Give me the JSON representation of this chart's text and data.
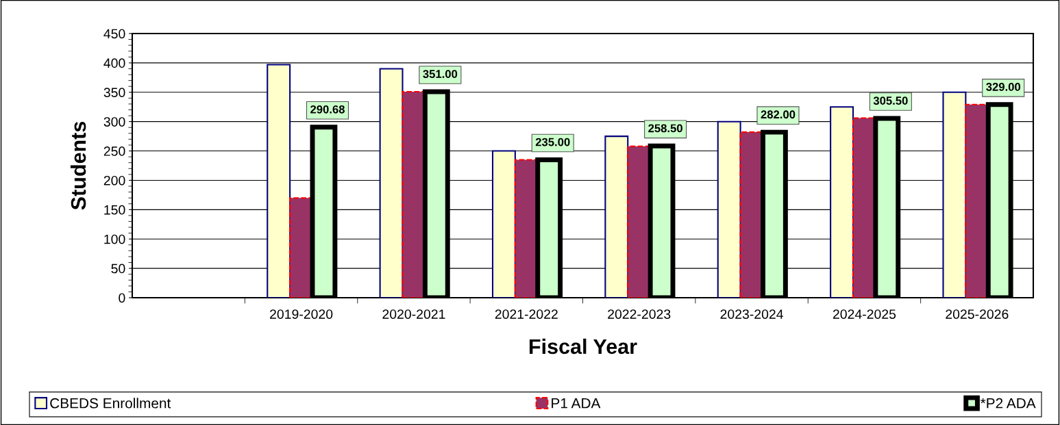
{
  "chart_data": {
    "type": "bar",
    "xlabel": "Fiscal Year",
    "ylabel": "Students",
    "categories": [
      null,
      "2019-2020",
      "2020-2021",
      "2021-2022",
      "2022-2023",
      "2023-2024",
      "2024-2025",
      "2025-2026"
    ],
    "series": [
      {
        "name": "CBEDS Enrollment",
        "color": "#ffffcc",
        "values": [
          null,
          397,
          390,
          250,
          275,
          300,
          325,
          350
        ]
      },
      {
        "name": "P1 ADA",
        "color": "#993366",
        "values": [
          null,
          170,
          351,
          235,
          258,
          282,
          306,
          329
        ]
      },
      {
        "name": "*P2 ADA",
        "color": "#ccffcc",
        "values": [
          null,
          290.68,
          351,
          235,
          258.5,
          282,
          305.5,
          329
        ],
        "value_labels": [
          null,
          "290.68",
          "351.00",
          "235.00",
          "258.50",
          "282.00",
          "305.50",
          "329.00"
        ]
      }
    ],
    "ylim": [
      0,
      450
    ],
    "yticks": [
      0,
      50,
      100,
      150,
      200,
      250,
      300,
      350,
      400,
      450
    ],
    "grid": "y",
    "legend": "bottom"
  }
}
